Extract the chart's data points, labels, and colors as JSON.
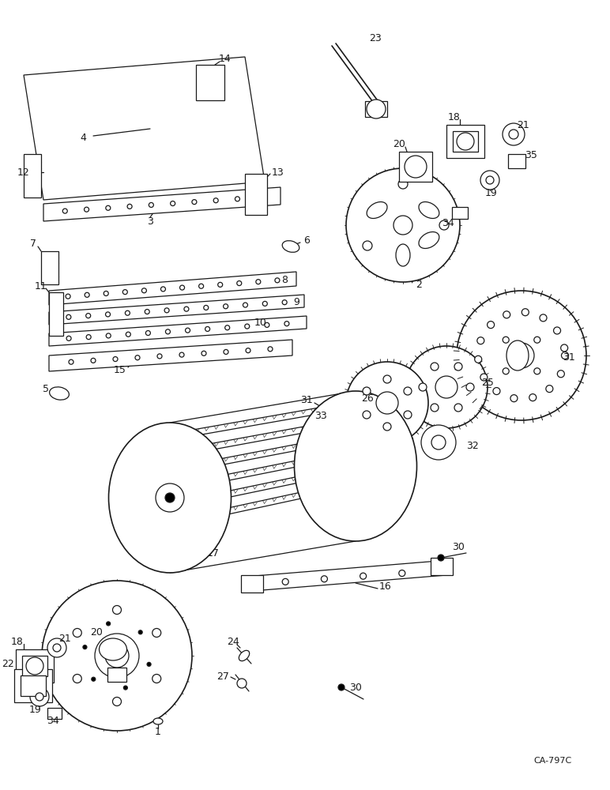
{
  "bg_color": "#ffffff",
  "line_color": "#1a1a1a",
  "watermark": "CA-797C",
  "fig_width": 7.72,
  "fig_height": 10.0,
  "dpi": 100
}
